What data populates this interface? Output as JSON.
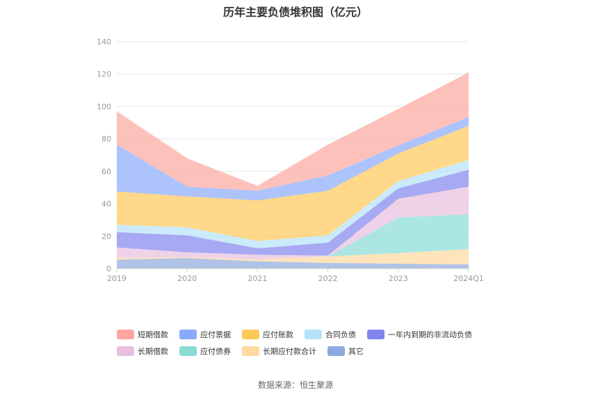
{
  "source": {
    "label": "数据来源：",
    "name": "恒生聚源"
  },
  "chart_data": {
    "type": "area",
    "stacked": true,
    "title": "历年主要负债堆积图（亿元）",
    "categories": [
      "2019",
      "2020",
      "2021",
      "2022",
      "2023",
      "2024Q1"
    ],
    "ylim": [
      0,
      140
    ],
    "yticks": [
      0,
      20,
      40,
      60,
      80,
      100,
      120,
      140
    ],
    "grid": true,
    "legend_position": "bottom",
    "series": [
      {
        "name": "其它",
        "color": "#8faadc",
        "values": [
          5.5,
          6.5,
          4.5,
          3.5,
          3.0,
          2.5
        ]
      },
      {
        "name": "长期应付款合计",
        "color": "#ffd99e",
        "values": [
          1.0,
          0.5,
          1.0,
          4.0,
          6.5,
          9.5
        ]
      },
      {
        "name": "应付债券",
        "color": "#88dcd6",
        "values": [
          0,
          0,
          0,
          0,
          22.0,
          21.5
        ]
      },
      {
        "name": "长期借款",
        "color": "#e8bfdd",
        "values": [
          6.5,
          3.0,
          3.0,
          0.5,
          11.5,
          17.0
        ]
      },
      {
        "name": "一年内到期的非流动负债",
        "color": "#8184ee",
        "values": [
          9.5,
          10.5,
          4.0,
          8.0,
          6.5,
          10.5
        ]
      },
      {
        "name": "合同负债",
        "color": "#b5e3f8",
        "values": [
          4.5,
          5.0,
          4.5,
          4.5,
          4.5,
          6.0
        ]
      },
      {
        "name": "应付账款",
        "color": "#ffc857",
        "values": [
          20.5,
          19.0,
          25.0,
          27.5,
          17.0,
          21.0
        ]
      },
      {
        "name": "应付票据",
        "color": "#8aa9fa",
        "values": [
          29.0,
          6.0,
          6.0,
          9.5,
          5.0,
          5.5
        ]
      },
      {
        "name": "短期借款",
        "color": "#fca7a0",
        "values": [
          20.5,
          17.5,
          3.0,
          19.0,
          22.5,
          27.5
        ]
      }
    ],
    "legend_order": [
      "短期借款",
      "应付票据",
      "应付账款",
      "合同负债",
      "一年内到期的非流动负债",
      "长期借款",
      "应付债券",
      "长期应付款合计",
      "其它"
    ]
  }
}
